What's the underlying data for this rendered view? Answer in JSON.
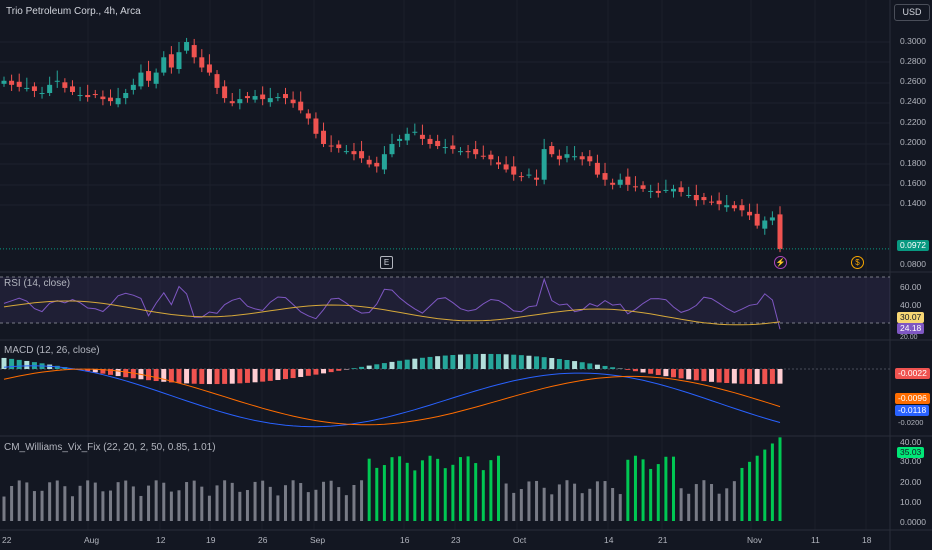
{
  "symbol_title": "Trio Petroleum Corp., 4h, Arca",
  "currency_button": "USD",
  "price_axis": {
    "ticks": [
      "0.3000",
      "0.2800",
      "0.2600",
      "0.2400",
      "0.2200",
      "0.2000",
      "0.1800",
      "0.1600",
      "0.1400",
      "0.0800"
    ],
    "last_price": "0.0972"
  },
  "event_markers": {
    "earnings": "E",
    "split": "⚡",
    "dividend": "$"
  },
  "rsi": {
    "title": "RSI (14, close)",
    "ticks": [
      "60.00",
      "40.00"
    ],
    "value_ma": "30.07",
    "value_rsi": "24.18",
    "bottom_tick": "20.00"
  },
  "macd": {
    "title": "MACD (12, 26, close)",
    "hist_value": "-0.0022",
    "signal_value": "-0.0096",
    "macd_value": "-0.0118",
    "bottom_tick": "-0.0200"
  },
  "vix": {
    "title": "CM_Williams_Vix_Fix (22, 20, 2, 50, 0.85, 1.01)",
    "ticks": [
      "40.00",
      "30.00",
      "20.00",
      "10.00",
      "0.0000"
    ],
    "value": "35.03"
  },
  "time_axis": [
    "22",
    "Aug",
    "12",
    "19",
    "26",
    "Sep",
    "16",
    "23",
    "Oct",
    "14",
    "21",
    "Nov",
    "11",
    "18"
  ],
  "colors": {
    "background": "#131722",
    "up": "#26a69a",
    "down": "#ef5350",
    "rsi_line": "#7e57c2",
    "rsi_ma": "#d6a83a",
    "macd_line": "#2962ff",
    "signal_line": "#ff6d00",
    "vix_high": "#00c853",
    "vix_normal": "#787b86"
  },
  "chart_data": {
    "type": "candlestick",
    "close_series": [
      0.262,
      0.258,
      0.256,
      0.255,
      0.252,
      0.25,
      0.258,
      0.262,
      0.255,
      0.251,
      0.248,
      0.246,
      0.248,
      0.244,
      0.242,
      0.245,
      0.25,
      0.258,
      0.27,
      0.262,
      0.27,
      0.285,
      0.275,
      0.29,
      0.3,
      0.285,
      0.275,
      0.27,
      0.255,
      0.245,
      0.24,
      0.244,
      0.245,
      0.247,
      0.244,
      0.245,
      0.246,
      0.245,
      0.24,
      0.233,
      0.225,
      0.21,
      0.2,
      0.198,
      0.196,
      0.193,
      0.19,
      0.186,
      0.18,
      0.178,
      0.19,
      0.2,
      0.205,
      0.21,
      0.212,
      0.205,
      0.2,
      0.198,
      0.197,
      0.195,
      0.193,
      0.192,
      0.19,
      0.188,
      0.185,
      0.18,
      0.175,
      0.17,
      0.168,
      0.17,
      0.165,
      0.195,
      0.19,
      0.185,
      0.19,
      0.188,
      0.185,
      0.183,
      0.17,
      0.165,
      0.16,
      0.165,
      0.16,
      0.158,
      0.156,
      0.154,
      0.152,
      0.155,
      0.156,
      0.153,
      0.15,
      0.145,
      0.145,
      0.143,
      0.141,
      0.14,
      0.137,
      0.135,
      0.13,
      0.12,
      0.125,
      0.128,
      0.097
    ]
  }
}
